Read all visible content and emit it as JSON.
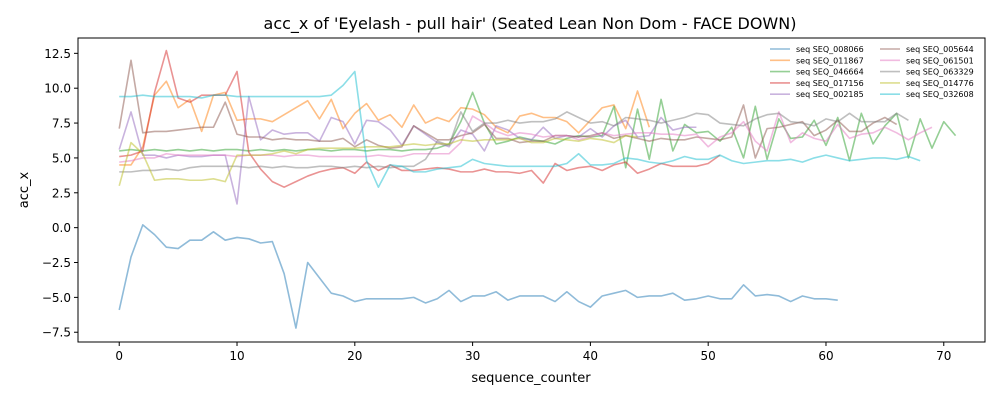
{
  "chart_data": {
    "type": "line",
    "title": "acc_x of 'Eyelash - pull hair' (Seated Lean Non Dom - FACE DOWN)",
    "xlabel": "sequence_counter",
    "ylabel": "acc_x",
    "xlim": [
      -3.5,
      73.5
    ],
    "ylim": [
      -8.2,
      13.6
    ],
    "xticks": [
      0,
      10,
      20,
      30,
      40,
      50,
      60,
      70
    ],
    "yticks": [
      -7.5,
      -5.0,
      -2.5,
      0.0,
      2.5,
      5.0,
      7.5,
      10.0,
      12.5
    ],
    "xtick_labels": [
      "0",
      "10",
      "20",
      "30",
      "40",
      "50",
      "60",
      "70"
    ],
    "ytick_labels": [
      "−7.5",
      "−5.0",
      "−2.5",
      "0.0",
      "2.5",
      "5.0",
      "7.5",
      "10.0",
      "12.5"
    ],
    "grid": false,
    "legend_position": "top-right",
    "series": [
      {
        "name": "seq SEQ_008066",
        "color": "#1f77b4",
        "values": [
          -5.9,
          -2.1,
          0.2,
          -0.5,
          -1.4,
          -1.5,
          -0.9,
          -0.9,
          -0.3,
          -0.9,
          -0.7,
          -0.8,
          -1.1,
          -1.0,
          -3.3,
          -7.2,
          -2.5,
          -3.6,
          -4.7,
          -4.9,
          -5.3,
          -5.1,
          -5.1,
          -5.1,
          -5.1,
          -5.0,
          -5.4,
          -5.1,
          -4.5,
          -5.3,
          -4.9,
          -4.9,
          -4.6,
          -5.2,
          -4.9,
          -4.9,
          -4.9,
          -5.3,
          -4.6,
          -5.3,
          -5.7,
          -4.9,
          -4.7,
          -4.5,
          -5.0,
          -4.9,
          -4.9,
          -4.7,
          -5.2,
          -5.1,
          -4.9,
          -5.1,
          -5.1,
          -4.1,
          -4.9,
          -4.8,
          -4.9,
          -5.3,
          -4.9,
          -5.1,
          -5.1,
          -5.2
        ]
      },
      {
        "name": "seq SEQ_011867",
        "color": "#ff7f0e",
        "values": [
          4.5,
          4.5,
          5.8,
          9.5,
          10.5,
          8.6,
          9.2,
          6.9,
          9.5,
          9.7,
          7.7,
          7.8,
          7.8,
          7.6,
          8.1,
          8.6,
          9.1,
          7.8,
          9.2,
          7.1,
          8.2,
          8.9,
          7.7,
          8.1,
          7.2,
          8.8,
          7.5,
          7.9,
          7.6,
          8.6,
          8.5,
          8.1,
          7.2,
          6.8,
          8.0,
          8.2,
          7.9,
          7.9,
          7.6,
          6.8,
          7.7,
          8.6,
          8.8,
          7.1,
          9.8,
          7.2
        ]
      },
      {
        "name": "seq SEQ_046664",
        "color": "#2ca02c",
        "values": [
          5.5,
          5.6,
          5.5,
          5.6,
          5.5,
          5.6,
          5.5,
          5.6,
          5.5,
          5.6,
          5.6,
          5.5,
          5.6,
          5.5,
          5.6,
          5.5,
          5.6,
          5.6,
          5.5,
          5.6,
          5.6,
          5.5,
          5.6,
          5.6,
          5.5,
          5.6,
          5.6,
          5.7,
          6.0,
          7.6,
          9.7,
          7.5,
          6.0,
          6.2,
          6.5,
          6.3,
          6.2,
          6.0,
          6.4,
          6.6,
          6.5,
          6.6,
          8.7,
          4.3,
          8.5,
          4.9,
          9.2,
          5.5,
          7.4,
          6.8,
          6.9,
          6.2,
          7.2,
          5.0,
          8.7,
          4.9,
          7.8,
          6.4,
          6.5,
          7.7,
          5.9,
          7.9,
          4.8,
          8.2,
          6.0,
          7.3,
          8.2,
          5.0,
          7.8,
          5.7,
          7.6,
          6.6
        ]
      },
      {
        "name": "seq SEQ_017156",
        "color": "#d62728",
        "values": [
          5.1,
          5.2,
          5.5,
          9.7,
          12.7,
          9.3,
          9.0,
          9.5,
          9.5,
          9.5,
          11.2,
          5.4,
          4.2,
          3.3,
          2.9,
          3.3,
          3.7,
          4.0,
          4.2,
          4.3,
          3.9,
          4.7,
          4.1,
          4.5,
          4.1,
          4.1,
          4.2,
          4.3,
          4.2,
          4.0,
          4.0,
          4.2,
          4.0,
          4.0,
          3.9,
          4.1,
          3.2,
          4.6,
          4.1,
          4.3,
          4.4,
          4.1,
          4.5,
          4.7,
          3.9,
          4.2,
          4.6,
          4.4,
          4.4,
          4.4,
          4.6,
          5.2
        ]
      },
      {
        "name": "seq SEQ_002185",
        "color": "#9467bd",
        "values": [
          5.6,
          8.3,
          5.2,
          5.2,
          5.0,
          5.2,
          5.1,
          5.1,
          5.2,
          5.2,
          1.7,
          9.4,
          6.3,
          7.0,
          6.7,
          6.8,
          6.8,
          6.2,
          7.9,
          7.6,
          6.0,
          7.7,
          7.6,
          7.0,
          5.9,
          7.3,
          6.7,
          6.1,
          5.8,
          7.0,
          6.7,
          5.5,
          7.3,
          7.0,
          6.4,
          6.3,
          7.2,
          6.4,
          6.6,
          6.5,
          7.1,
          6.5,
          7.3,
          7.7,
          6.5,
          6.6,
          7.9,
          7.0,
          7.2,
          7.2
        ]
      },
      {
        "name": "seq SEQ_005644",
        "color": "#8c564b",
        "values": [
          7.1,
          12.0,
          6.8,
          6.9,
          6.9,
          7.0,
          7.1,
          7.2,
          7.2,
          9.0,
          6.7,
          6.5,
          6.5,
          6.3,
          6.4,
          6.3,
          6.3,
          6.2,
          6.2,
          6.4,
          5.8,
          6.3,
          5.9,
          5.7,
          5.8,
          7.3,
          6.8,
          6.3,
          6.3,
          6.6,
          6.8,
          7.4,
          6.4,
          6.4,
          6.1,
          6.2,
          6.2,
          6.6,
          6.6,
          6.5,
          6.6,
          6.8,
          6.4,
          6.6,
          6.4,
          6.2,
          6.4,
          6.3,
          6.3,
          6.5,
          6.4,
          6.3,
          6.5,
          8.8,
          5.0,
          7.1,
          7.2,
          7.4,
          7.6,
          6.6,
          7.0,
          7.7,
          6.9,
          6.9,
          7.5,
          7.9,
          7.4
        ]
      },
      {
        "name": "seq SEQ_061501",
        "color": "#e377c2",
        "values": [
          4.7,
          4.8,
          5.0,
          5.0,
          5.3,
          5.2,
          5.2,
          5.2,
          5.2,
          5.2,
          5.1,
          5.2,
          5.2,
          5.2,
          5.1,
          5.2,
          5.2,
          5.1,
          5.1,
          5.1,
          5.1,
          5.1,
          5.2,
          5.1,
          5.1,
          5.3,
          5.3,
          5.3,
          5.3,
          6.1,
          8.0,
          7.5,
          6.9,
          6.6,
          6.8,
          6.7,
          6.5,
          6.6,
          6.6,
          6.3,
          6.5,
          6.8,
          6.6,
          6.7,
          6.8,
          6.8,
          6.7,
          6.7,
          6.6,
          6.7,
          5.8,
          6.5,
          6.8,
          7.6,
          6.2,
          5.5,
          8.3,
          6.1,
          6.8,
          6.4,
          6.2,
          7.4,
          6.4,
          6.7,
          6.8,
          7.2,
          6.8,
          6.3,
          6.8,
          7.2
        ]
      },
      {
        "name": "seq SEQ_063329",
        "color": "#7f7f7f",
        "values": [
          4.0,
          4.0,
          4.1,
          4.1,
          4.2,
          4.1,
          4.3,
          4.4,
          4.4,
          4.4,
          4.4,
          4.3,
          4.4,
          4.3,
          4.4,
          4.3,
          4.3,
          4.4,
          4.4,
          4.3,
          4.4,
          4.3,
          4.4,
          4.3,
          4.4,
          4.4,
          4.9,
          6.2,
          5.9,
          8.3,
          6.9,
          7.5,
          7.5,
          7.7,
          7.5,
          7.6,
          7.6,
          7.8,
          8.3,
          7.9,
          7.5,
          7.6,
          7.3,
          7.9,
          7.8,
          7.7,
          7.5,
          7.7,
          7.9,
          8.2,
          8.1,
          7.5,
          7.4,
          7.3,
          7.8,
          8.1,
          8.2,
          7.6,
          7.5,
          7.3,
          7.8,
          7.6,
          8.2,
          7.6,
          7.6,
          7.6,
          8.2,
          7.7
        ]
      },
      {
        "name": "seq SEQ_014776",
        "color": "#bcbd22",
        "values": [
          3.0,
          6.1,
          5.3,
          3.4,
          3.5,
          3.5,
          3.4,
          3.4,
          3.5,
          3.3,
          5.2,
          5.2,
          5.2,
          5.3,
          5.5,
          5.3,
          5.6,
          5.7,
          5.7,
          5.7,
          5.7,
          5.8,
          5.8,
          5.8,
          5.9,
          6.0,
          5.9,
          6.0,
          6.0,
          6.3,
          6.2,
          6.3,
          6.3,
          6.3,
          6.4,
          6.1,
          6.1,
          6.4,
          6.3,
          6.2,
          6.4,
          6.3,
          6.1,
          6.6,
          6.5
        ]
      },
      {
        "name": "seq SEQ_032608",
        "color": "#17becf",
        "values": [
          9.4,
          9.4,
          9.5,
          9.4,
          9.4,
          9.4,
          9.4,
          9.3,
          9.5,
          9.5,
          9.4,
          9.4,
          9.4,
          9.4,
          9.4,
          9.4,
          9.4,
          9.4,
          9.5,
          10.2,
          11.2,
          4.8,
          2.9,
          4.5,
          4.4,
          4.0,
          4.0,
          4.2,
          4.3,
          4.4,
          4.9,
          4.6,
          4.5,
          4.4,
          4.4,
          4.4,
          4.4,
          4.4,
          4.6,
          5.3,
          4.5,
          4.5,
          4.6,
          5.0,
          4.9,
          4.7,
          4.6,
          4.8,
          5.1,
          4.9,
          4.9,
          5.2,
          4.8,
          4.6,
          4.7,
          4.8,
          4.8,
          4.9,
          4.7,
          5.0,
          5.2,
          5.0,
          4.8,
          4.9,
          5.0,
          5.0,
          4.9,
          5.1,
          4.8
        ]
      }
    ]
  }
}
